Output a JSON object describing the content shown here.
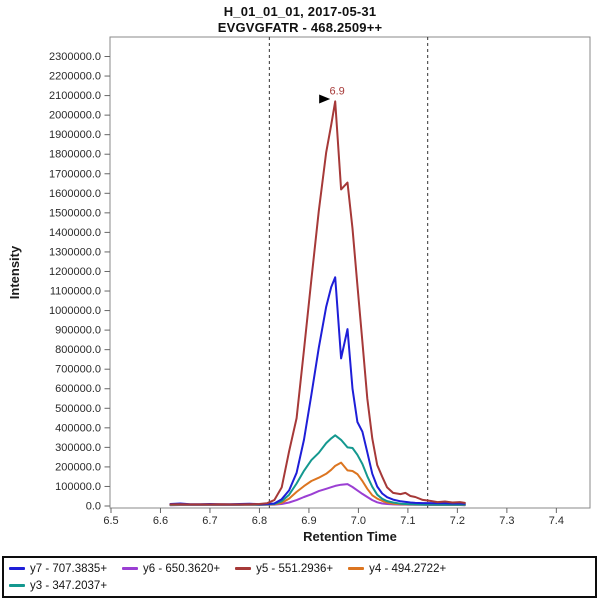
{
  "chart_data": {
    "type": "line",
    "title": "H_01_01_01, 2017-05-31",
    "subtitle": "EVGVGFATR - 468.2509++",
    "xlabel": "Retention Time",
    "ylabel": "Intensity",
    "x_range": [
      6.498,
      7.468
    ],
    "y_range": [
      0,
      2390000
    ],
    "grid": false,
    "legend_position": "bottom",
    "x_ticks": [
      6.5,
      6.6,
      6.7,
      6.8,
      6.9,
      7.0,
      7.1,
      7.2,
      7.3,
      7.4
    ],
    "x_tick_labels": [
      "6.5",
      "6.6",
      "6.7",
      "6.8",
      "6.9",
      "7.0",
      "7.1",
      "7.2",
      "7.3",
      "7.4"
    ],
    "y_ticks": [
      0,
      100000,
      200000,
      300000,
      400000,
      500000,
      600000,
      700000,
      800000,
      900000,
      1000000,
      1100000,
      1200000,
      1300000,
      1400000,
      1500000,
      1600000,
      1700000,
      1800000,
      1900000,
      2000000,
      2100000,
      2200000,
      2300000
    ],
    "y_tick_labels": [
      "0.0",
      "100000.0",
      "200000.0",
      "300000.0",
      "400000.0",
      "500000.0",
      "600000.0",
      "700000.0",
      "800000.0",
      "900000.0",
      "1000000.0",
      "1100000.0",
      "1200000.0",
      "1300000.0",
      "1400000.0",
      "1500000.0",
      "1600000.0",
      "1700000.0",
      "1800000.0",
      "1900000.0",
      "2000000.0",
      "2100000.0",
      "2200000.0",
      "2300000.0"
    ],
    "peak_boundaries": [
      6.82,
      7.14
    ],
    "annotation": {
      "text": "6.9",
      "x": 6.953,
      "y": 2070000,
      "color": "#a63938",
      "arrow_color": "#000000"
    },
    "x": [
      6.62,
      6.64,
      6.66,
      6.68,
      6.7,
      6.72,
      6.74,
      6.76,
      6.78,
      6.8,
      6.815,
      6.83,
      6.845,
      6.86,
      6.875,
      6.89,
      6.905,
      6.92,
      6.935,
      6.945,
      6.953,
      6.965,
      6.978,
      6.988,
      6.998,
      7.008,
      7.018,
      7.028,
      7.038,
      7.048,
      7.058,
      7.07,
      7.085,
      7.095,
      7.105,
      7.115,
      7.13,
      7.145,
      7.16,
      7.175,
      7.19,
      7.205,
      7.215
    ],
    "series": [
      {
        "id": "y7",
        "name": "y7 - 707.3835+",
        "color": "#1e1ed8",
        "values": [
          10000,
          13000,
          9000,
          9000,
          10000,
          9000,
          9000,
          10000,
          12000,
          9000,
          10000,
          13000,
          35000,
          80000,
          170000,
          340000,
          570000,
          810000,
          1020000,
          1120000,
          1170000,
          755000,
          905000,
          600000,
          430000,
          380000,
          275000,
          165000,
          100000,
          64000,
          45000,
          33000,
          24000,
          21000,
          18000,
          16000,
          15000,
          15000,
          14000,
          14000,
          13000,
          13000,
          12000
        ]
      },
      {
        "id": "y6",
        "name": "y6 - 650.3620+",
        "color": "#9b3fd3",
        "values": [
          4000,
          5000,
          5000,
          5000,
          5000,
          5000,
          5000,
          5000,
          6000,
          5000,
          6000,
          7000,
          10000,
          18000,
          30000,
          46000,
          60000,
          76000,
          88000,
          96000,
          103000,
          109000,
          112000,
          97000,
          80000,
          62000,
          46000,
          30000,
          19000,
          13000,
          10000,
          8000,
          7000,
          7000,
          6000,
          6000,
          6000,
          5000,
          5000,
          5000,
          5000,
          5000,
          4000
        ]
      },
      {
        "id": "y5",
        "name": "y5 - 551.2936+",
        "color": "#a63938",
        "values": [
          8000,
          9000,
          8000,
          8000,
          8000,
          9000,
          8000,
          8000,
          9000,
          10000,
          14000,
          30000,
          95000,
          280000,
          450000,
          800000,
          1160000,
          1510000,
          1810000,
          1950000,
          2070000,
          1620000,
          1655000,
          1420000,
          1130000,
          840000,
          550000,
          345000,
          210000,
          150000,
          95000,
          67000,
          61000,
          67000,
          51000,
          46000,
          31000,
          26000,
          20000,
          23000,
          18000,
          20000,
          16000
        ]
      },
      {
        "id": "y4",
        "name": "y4 - 494.2722+",
        "color": "#dc7520",
        "values": [
          5000,
          6000,
          6000,
          6000,
          6000,
          6000,
          6000,
          6000,
          7000,
          6000,
          7000,
          8000,
          16000,
          38000,
          72000,
          102000,
          128000,
          145000,
          165000,
          185000,
          205000,
          222000,
          182000,
          179000,
          163000,
          128000,
          88000,
          55000,
          38000,
          26000,
          17000,
          12000,
          9000,
          8000,
          8000,
          7000,
          7000,
          6000,
          6000,
          6000,
          6000,
          6000,
          5000
        ]
      },
      {
        "id": "y3",
        "name": "y3 - 347.2037+",
        "color": "#14988f",
        "values": [
          6000,
          7000,
          7000,
          7000,
          7000,
          7000,
          7000,
          7000,
          8000,
          7000,
          8000,
          10000,
          24000,
          58000,
          115000,
          180000,
          235000,
          272000,
          322000,
          346000,
          362000,
          338000,
          300000,
          297000,
          262000,
          215000,
          152000,
          98000,
          58000,
          37000,
          25000,
          18000,
          12000,
          10000,
          9000,
          8000,
          7000,
          7000,
          6000,
          6000,
          6000,
          6000,
          6000
        ]
      }
    ]
  }
}
